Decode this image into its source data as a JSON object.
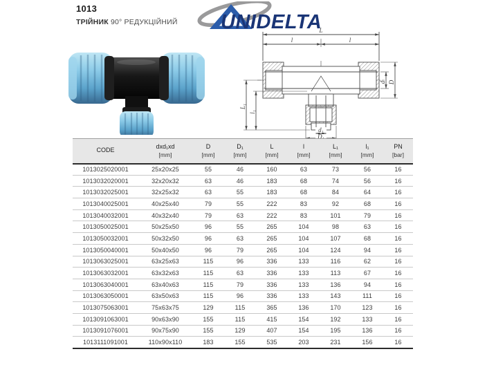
{
  "header": {
    "product_code": "1013",
    "product_name": "ТРІЙНИК",
    "product_name_detail": "90° РЕДУКЦІЙНИЙ",
    "brand": "UNIDELTA"
  },
  "drawing": {
    "dim_L": "L",
    "dim_l_left": "l",
    "dim_l_right": "l",
    "dim_d": "d",
    "dim_D": "D",
    "dim_L1": "L₁",
    "dim_l1": "l₁",
    "dim_d1": "d₁",
    "dim_D1": "D₁"
  },
  "table": {
    "columns": [
      {
        "label": "CODE",
        "unit": ""
      },
      {
        "label": "dxd₁xd",
        "unit": "[mm]"
      },
      {
        "label": "D",
        "unit": "[mm]"
      },
      {
        "label": "D₁",
        "unit": "[mm]"
      },
      {
        "label": "L",
        "unit": "[mm]"
      },
      {
        "label": "l",
        "unit": "[mm]"
      },
      {
        "label": "L₁",
        "unit": "[mm]"
      },
      {
        "label": "l₁",
        "unit": "[mm]"
      },
      {
        "label": "PN",
        "unit": "[bar]"
      }
    ],
    "rows": [
      [
        "1013025020001",
        "25x20x25",
        "55",
        "46",
        "160",
        "63",
        "73",
        "56",
        "16"
      ],
      [
        "1013032020001",
        "32x20x32",
        "63",
        "46",
        "183",
        "68",
        "74",
        "56",
        "16"
      ],
      [
        "1013032025001",
        "32x25x32",
        "63",
        "55",
        "183",
        "68",
        "84",
        "64",
        "16"
      ],
      [
        "1013040025001",
        "40x25x40",
        "79",
        "55",
        "222",
        "83",
        "92",
        "68",
        "16"
      ],
      [
        "1013040032001",
        "40x32x40",
        "79",
        "63",
        "222",
        "83",
        "101",
        "79",
        "16"
      ],
      [
        "1013050025001",
        "50x25x50",
        "96",
        "55",
        "265",
        "104",
        "98",
        "63",
        "16"
      ],
      [
        "1013050032001",
        "50x32x50",
        "96",
        "63",
        "265",
        "104",
        "107",
        "68",
        "16"
      ],
      [
        "1013050040001",
        "50x40x50",
        "96",
        "79",
        "265",
        "104",
        "124",
        "94",
        "16"
      ],
      [
        "1013063025001",
        "63x25x63",
        "115",
        "96",
        "336",
        "133",
        "116",
        "62",
        "16"
      ],
      [
        "1013063032001",
        "63x32x63",
        "115",
        "63",
        "336",
        "133",
        "113",
        "67",
        "16"
      ],
      [
        "1013063040001",
        "63x40x63",
        "115",
        "79",
        "336",
        "133",
        "136",
        "94",
        "16"
      ],
      [
        "1013063050001",
        "63x50x63",
        "115",
        "96",
        "336",
        "133",
        "143",
        "111",
        "16"
      ],
      [
        "1013075063001",
        "75x63x75",
        "129",
        "115",
        "365",
        "136",
        "170",
        "123",
        "16"
      ],
      [
        "1013091063001",
        "90x63x90",
        "155",
        "115",
        "415",
        "154",
        "192",
        "133",
        "16"
      ],
      [
        "1013091076001",
        "90x75x90",
        "155",
        "129",
        "407",
        "154",
        "195",
        "136",
        "16"
      ],
      [
        "1013111091001",
        "110x90x110",
        "183",
        "155",
        "535",
        "203",
        "231",
        "156",
        "16"
      ]
    ]
  },
  "colors": {
    "brand_navy": "#1a3576",
    "brand_blue": "#2b5caa",
    "swoosh_gray": "#9a9a9b",
    "fitting_blue": "#7fc2e2",
    "fitting_black": "#141414",
    "table_header_bg": "#e7e7e7",
    "line_gray": "#4a4a4a"
  }
}
